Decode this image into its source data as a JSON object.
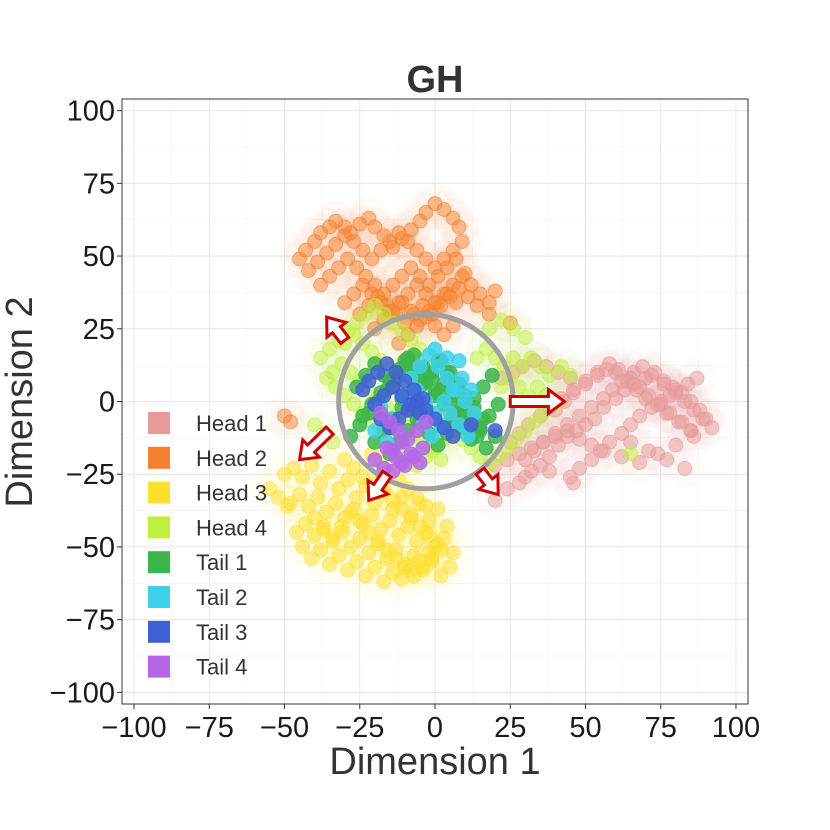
{
  "chart_data": {
    "type": "scatter",
    "title": "GH",
    "xlabel": "Dimension 1",
    "ylabel": "Dimension 2",
    "xlim": [
      -104,
      104
    ],
    "ylim": [
      -104,
      104
    ],
    "xticks": [
      -100,
      -75,
      -50,
      -25,
      0,
      25,
      50,
      75,
      100
    ],
    "yticks": [
      -100,
      -75,
      -50,
      -25,
      0,
      25,
      50,
      75,
      100
    ],
    "tick_labels": [
      "−100",
      "−75",
      "−50",
      "−25",
      "0",
      "25",
      "50",
      "75",
      "100"
    ],
    "grid": true,
    "legend_position": "bottom-left",
    "circle": {
      "center": [
        -3,
        0
      ],
      "radius": 29,
      "color": "#a0a0a0"
    },
    "arrows": [
      {
        "from": [
          -30,
          21
        ],
        "to": [
          -36,
          29
        ]
      },
      {
        "from": [
          -35,
          -10
        ],
        "to": [
          -45,
          -20
        ]
      },
      {
        "from": [
          -16,
          -25
        ],
        "to": [
          -22,
          -34
        ]
      },
      {
        "from": [
          15,
          -24
        ],
        "to": [
          21,
          -32
        ]
      },
      {
        "from": [
          25,
          0
        ],
        "to": [
          43,
          0
        ]
      }
    ],
    "arrow_color": "#cc0000",
    "series": [
      {
        "name": "Head 1",
        "color": "#e89a9a",
        "x": [
          20,
          24,
          28,
          32,
          35,
          38,
          41,
          44,
          47,
          50,
          53,
          56,
          60,
          63,
          66,
          70,
          73,
          76,
          79,
          82,
          85,
          88,
          90,
          92,
          45,
          48,
          52,
          55,
          58,
          62,
          65,
          68,
          72,
          75,
          78,
          80,
          84,
          87,
          40,
          43,
          46,
          50,
          54,
          57,
          60,
          64,
          67,
          70,
          74,
          77,
          81,
          85,
          30,
          33,
          36,
          40,
          44,
          48,
          52,
          56,
          59,
          62,
          66,
          69,
          72,
          76,
          80,
          83,
          86,
          89,
          25,
          28,
          31,
          35,
          38,
          42,
          46,
          50,
          54,
          58,
          61,
          65,
          68,
          71,
          75,
          78,
          82,
          85,
          22,
          26,
          29,
          33,
          37,
          41,
          45,
          20,
          24,
          28,
          32,
          36,
          40,
          44,
          48,
          52,
          56,
          62,
          68,
          74,
          80,
          86,
          65,
          71,
          77,
          83,
          30,
          38,
          46
        ],
        "y": [
          -34,
          -30,
          -28,
          -24,
          -22,
          -19,
          -15,
          -12,
          -10,
          -8,
          -6,
          -2,
          1,
          4,
          6,
          8,
          10,
          7,
          5,
          3,
          0,
          -3,
          -6,
          -9,
          -26,
          -23,
          -20,
          -17,
          -14,
          -11,
          -8,
          -5,
          -2,
          0,
          2,
          4,
          6,
          8,
          -3,
          0,
          3,
          6,
          9,
          11,
          10,
          7,
          4,
          1,
          -1,
          -4,
          -7,
          -10,
          -20,
          -17,
          -14,
          -11,
          -8,
          -5,
          -2,
          1,
          4,
          7,
          10,
          12,
          9,
          6,
          3,
          0,
          -3,
          -6,
          -14,
          -11,
          -8,
          -5,
          -2,
          1,
          4,
          7,
          10,
          13,
          11,
          8,
          5,
          2,
          -1,
          -4,
          -7,
          -10,
          8,
          10,
          12,
          14,
          12,
          10,
          8,
          -22,
          -20,
          -18,
          -16,
          -14,
          -12,
          -10,
          -13,
          -15,
          -17,
          -19,
          -21,
          -18,
          -15,
          -12,
          -14,
          -17,
          -20,
          -23,
          -26,
          -24,
          -28
        ]
      },
      {
        "name": "Head 2",
        "color": "#f4812f",
        "x": [
          -45,
          -43,
          -40,
          -38,
          -35,
          -33,
          -30,
          -28,
          -25,
          -22,
          -20,
          -17,
          -14,
          -11,
          -8,
          -5,
          -3,
          0,
          3,
          6,
          8,
          -42,
          -39,
          -36,
          -33,
          -30,
          -27,
          -24,
          -21,
          -18,
          -15,
          -12,
          -9,
          -6,
          -3,
          0,
          3,
          6,
          9,
          -38,
          -35,
          -32,
          -29,
          -26,
          -23,
          -20,
          -17,
          -14,
          -11,
          -8,
          -5,
          -2,
          1,
          4,
          7,
          10,
          -30,
          -27,
          -24,
          -21,
          -18,
          -15,
          -12,
          -9,
          -6,
          -3,
          0,
          3,
          6,
          9,
          12,
          15,
          18,
          -25,
          -22,
          -19,
          -16,
          -13,
          -10,
          -7,
          -4,
          -1,
          2,
          5,
          8,
          11,
          14,
          -20,
          -17,
          -14,
          -11,
          -8,
          -5,
          -2,
          1,
          4,
          7,
          -12,
          -9,
          -6,
          -3,
          0,
          3,
          6,
          -50,
          -48,
          20,
          25,
          18
        ],
        "y": [
          49,
          52,
          55,
          58,
          60,
          62,
          60,
          58,
          61,
          63,
          60,
          57,
          53,
          56,
          59,
          62,
          65,
          68,
          66,
          63,
          60,
          45,
          48,
          51,
          54,
          57,
          55,
          52,
          49,
          52,
          55,
          58,
          55,
          52,
          49,
          46,
          49,
          52,
          55,
          40,
          43,
          46,
          49,
          46,
          43,
          40,
          37,
          40,
          43,
          46,
          43,
          40,
          43,
          46,
          49,
          44,
          34,
          37,
          40,
          37,
          34,
          31,
          34,
          37,
          40,
          37,
          34,
          37,
          40,
          43,
          40,
          37,
          34,
          30,
          33,
          36,
          33,
          30,
          27,
          30,
          33,
          30,
          33,
          36,
          39,
          36,
          33,
          25,
          28,
          31,
          34,
          31,
          28,
          31,
          34,
          37,
          34,
          20,
          23,
          26,
          29,
          26,
          23,
          26,
          -5,
          -7,
          38,
          27,
          30
        ]
      },
      {
        "name": "Head 3",
        "color": "#fde02a",
        "x": [
          -50,
          -47,
          -44,
          -41,
          -38,
          -35,
          -32,
          -29,
          -26,
          -23,
          -20,
          -17,
          -14,
          -11,
          -8,
          -5,
          -2,
          1,
          4,
          -48,
          -45,
          -42,
          -39,
          -36,
          -33,
          -30,
          -27,
          -24,
          -21,
          -18,
          -15,
          -12,
          -9,
          -6,
          -3,
          0,
          3,
          6,
          -46,
          -43,
          -40,
          -37,
          -34,
          -31,
          -28,
          -25,
          -22,
          -19,
          -16,
          -13,
          -10,
          -7,
          -4,
          -1,
          2,
          5,
          -44,
          -41,
          -38,
          -35,
          -32,
          -29,
          -26,
          -23,
          -20,
          -17,
          -14,
          -11,
          -8,
          -5,
          -2,
          1,
          -40,
          -37,
          -34,
          -31,
          -28,
          -25,
          -22,
          -19,
          -16,
          -13,
          -10,
          -7,
          -4,
          -1,
          2,
          -30,
          -27,
          -24,
          -21,
          -18,
          -15,
          -12,
          -9,
          -6,
          -3,
          -20,
          -17,
          -14,
          -11,
          -8,
          -5,
          -2,
          -55,
          -52,
          -49
        ],
        "y": [
          -25,
          -23,
          -26,
          -22,
          -28,
          -24,
          -30,
          -27,
          -33,
          -29,
          -35,
          -31,
          -37,
          -33,
          -39,
          -35,
          -41,
          -37,
          -43,
          -35,
          -32,
          -36,
          -33,
          -38,
          -35,
          -40,
          -37,
          -42,
          -39,
          -44,
          -41,
          -46,
          -43,
          -48,
          -45,
          -50,
          -47,
          -52,
          -45,
          -42,
          -46,
          -43,
          -48,
          -45,
          -50,
          -47,
          -52,
          -49,
          -54,
          -51,
          -56,
          -53,
          -58,
          -55,
          -60,
          -57,
          -50,
          -54,
          -51,
          -56,
          -53,
          -58,
          -55,
          -60,
          -57,
          -62,
          -59,
          -61,
          -58,
          -55,
          -52,
          -49,
          -40,
          -44,
          -47,
          -43,
          -38,
          -41,
          -45,
          -48,
          -51,
          -54,
          -57,
          -60,
          -57,
          -54,
          -51,
          -20,
          -23,
          -26,
          -18,
          -21,
          -24,
          -27,
          -30,
          -33,
          -36,
          -28,
          -31,
          -34,
          -37,
          -40,
          -43,
          -46,
          -30,
          -33,
          -36
        ]
      },
      {
        "name": "Head 4",
        "color": "#bff03c",
        "x": [
          -38,
          -35,
          -32,
          -29,
          -26,
          -23,
          -20,
          -17,
          -14,
          -11,
          -8,
          -5,
          14,
          17,
          20,
          23,
          26,
          29,
          32,
          35,
          38,
          42,
          45,
          22,
          25,
          28,
          31,
          34,
          37,
          40,
          -36,
          -33,
          -30,
          -27,
          -24,
          -21,
          -18,
          -15,
          -12,
          -9,
          -6,
          -3,
          0,
          3,
          -34,
          -31,
          -28,
          -25,
          -22,
          -19,
          -16,
          -13,
          -10,
          -7,
          -4,
          -1,
          2,
          -30,
          -27,
          -24,
          -21,
          -18,
          -15,
          -12,
          -9,
          -6,
          -3,
          0,
          3,
          6,
          9,
          12,
          15,
          18,
          21,
          24,
          27,
          30,
          33,
          36,
          -40,
          -37,
          -34,
          65,
          18,
          22,
          26,
          30
        ],
        "y": [
          15,
          18,
          21,
          24,
          27,
          30,
          33,
          30,
          27,
          24,
          21,
          18,
          15,
          18,
          15,
          12,
          15,
          12,
          15,
          12,
          9,
          12,
          9,
          5,
          8,
          5,
          2,
          5,
          2,
          -1,
          8,
          5,
          2,
          -1,
          -4,
          -7,
          -10,
          -13,
          -16,
          -19,
          -22,
          -19,
          -16,
          -13,
          10,
          13,
          10,
          7,
          4,
          1,
          -2,
          -5,
          -8,
          -11,
          -14,
          -17,
          -20,
          20,
          23,
          20,
          17,
          14,
          11,
          8,
          5,
          2,
          -1,
          -4,
          -7,
          -10,
          -13,
          -16,
          -19,
          -22,
          -19,
          -16,
          -13,
          -10,
          -7,
          -4,
          -8,
          -11,
          -14,
          -18,
          25,
          28,
          25,
          22
        ]
      },
      {
        "name": "Tail 1",
        "color": "#3cb54a",
        "x": [
          -28,
          -25,
          -22,
          -19,
          -16,
          -13,
          -10,
          -7,
          -4,
          -1,
          2,
          5,
          8,
          11,
          14,
          17,
          20,
          -26,
          -23,
          -20,
          -17,
          -14,
          -11,
          -8,
          -5,
          -2,
          1,
          4,
          7,
          10,
          13,
          16,
          19,
          -24,
          -21,
          -18,
          -15,
          -12,
          -9,
          -6,
          -3,
          0,
          3,
          6,
          9,
          12,
          15,
          18,
          21,
          -20,
          -17,
          -14,
          -11,
          -8,
          -5,
          -2,
          1,
          4,
          7,
          10,
          13,
          16,
          -15,
          -12,
          -9,
          -6,
          -3,
          0,
          3,
          6,
          9,
          12,
          15,
          -10,
          -7,
          -4,
          -1,
          2,
          5,
          8
        ],
        "y": [
          -12,
          -8,
          -4,
          0,
          4,
          8,
          12,
          16,
          12,
          8,
          4,
          0,
          -4,
          -8,
          -12,
          -16,
          -12,
          5,
          9,
          13,
          9,
          5,
          1,
          -3,
          -7,
          -11,
          -15,
          -11,
          -7,
          -3,
          1,
          5,
          9,
          -5,
          -1,
          3,
          7,
          11,
          15,
          11,
          7,
          3,
          -1,
          -5,
          -9,
          -13,
          -9,
          -5,
          -1,
          -14,
          -10,
          -6,
          -2,
          2,
          6,
          10,
          14,
          10,
          6,
          2,
          -2,
          -6,
          -18,
          -14,
          -10,
          -6,
          -2,
          2,
          6,
          2,
          -2,
          -6,
          -10,
          14,
          10,
          6,
          10,
          14,
          10,
          6
        ]
      },
      {
        "name": "Tail 2",
        "color": "#3dd1ea",
        "x": [
          -8,
          -5,
          -2,
          1,
          4,
          7,
          10,
          13,
          -6,
          -3,
          0,
          3,
          6,
          9,
          12,
          -18,
          -15,
          -12,
          -10,
          -4,
          -1,
          2,
          5,
          8,
          11,
          -20,
          -16,
          0,
          4,
          8
        ],
        "y": [
          8,
          12,
          16,
          12,
          8,
          4,
          0,
          -4,
          4,
          0,
          -4,
          0,
          4,
          8,
          4,
          -2,
          -6,
          -10,
          2,
          -8,
          -12,
          -8,
          -4,
          -8,
          -12,
          -10,
          -14,
          18,
          15,
          14
        ]
      },
      {
        "name": "Tail 3",
        "color": "#3f5fd6",
        "x": [
          -22,
          -19,
          -16,
          -13,
          -10,
          -7,
          -4,
          -20,
          -17,
          -14,
          -11,
          -8,
          -5,
          -18,
          -15,
          -12,
          -9,
          -6,
          -3,
          0,
          3,
          6,
          12,
          20,
          -24
        ],
        "y": [
          7,
          10,
          13,
          10,
          7,
          4,
          1,
          -1,
          2,
          5,
          2,
          -1,
          -4,
          -6,
          -9,
          -6,
          -3,
          0,
          -3,
          -6,
          -9,
          -12,
          -8,
          -10,
          4
        ]
      },
      {
        "name": "Tail 4",
        "color": "#b566e8",
        "x": [
          -18,
          -15,
          -12,
          -9,
          -6,
          -3,
          -16,
          -13,
          -10,
          -7,
          -4,
          -14,
          -11,
          -8,
          -5,
          -20,
          -17,
          -14,
          -11
        ],
        "y": [
          -4,
          -7,
          -10,
          -13,
          -10,
          -7,
          -16,
          -19,
          -22,
          -19,
          -16,
          -24,
          -21,
          -18,
          -21,
          -20,
          -23,
          -17,
          -14
        ]
      }
    ]
  }
}
